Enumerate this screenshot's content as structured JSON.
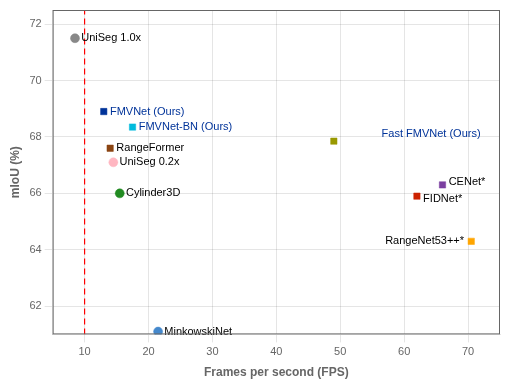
{
  "chart_data": {
    "type": "scatter",
    "xlabel": "Frames per second (FPS)",
    "ylabel": "mIoU (%)",
    "xlim": [
      5,
      75
    ],
    "ylim": [
      61,
      72.5
    ],
    "xticks": [
      10,
      20,
      30,
      40,
      50,
      60,
      70
    ],
    "yticks": [
      62,
      64,
      66,
      68,
      70,
      72
    ],
    "grid": true,
    "series": [
      {
        "color": "#888888",
        "marker": "circle",
        "x": [
          8.5
        ],
        "values": [
          71.5
        ]
      },
      {
        "color": "#003399",
        "marker": "square",
        "x": [
          13.0
        ],
        "values": [
          68.9
        ]
      },
      {
        "color": "#00BBDD",
        "marker": "square",
        "x": [
          17.5
        ],
        "values": [
          68.35
        ]
      },
      {
        "color": "#8B4513",
        "marker": "square",
        "x": [
          14.0
        ],
        "values": [
          67.6
        ]
      },
      {
        "color": "#FFB6C1",
        "marker": "circle",
        "x": [
          14.5
        ],
        "values": [
          67.1
        ]
      },
      {
        "color": "#228B22",
        "marker": "circle",
        "x": [
          15.5
        ],
        "values": [
          66.0
        ]
      },
      {
        "color": "#7B3FA0",
        "marker": "square",
        "x": [
          66.0
        ],
        "values": [
          66.3
        ]
      },
      {
        "color": "#CC2200",
        "marker": "square",
        "x": [
          62.0
        ],
        "values": [
          65.9
        ]
      },
      {
        "color": "#FFA500",
        "marker": "square",
        "x": [
          70.5
        ],
        "values": [
          64.3
        ]
      },
      {
        "color": "#4488CC",
        "marker": "circle",
        "x": [
          21.5
        ],
        "values": [
          61.1
        ]
      },
      {
        "color": "#999900",
        "marker": "square",
        "x": [
          49.0
        ],
        "values": [
          67.85
        ]
      }
    ],
    "annotations": [
      {
        "text": "UniSeg 1.0x",
        "x": 9.0,
        "y": 71.5,
        "color": "black"
      },
      {
        "text": "FMVNet (Ours)",
        "x": 13.5,
        "y": 68.9,
        "color": "#003399"
      },
      {
        "text": "FMVNet-BN (Ours)",
        "x": 18.0,
        "y": 68.35,
        "color": "#003399"
      },
      {
        "text": "RangeFormer",
        "x": 14.5,
        "y": 67.6,
        "color": "black"
      },
      {
        "text": "UniSeg 0.2x",
        "x": 15.0,
        "y": 67.1,
        "color": "black"
      },
      {
        "text": "Cylinder3D",
        "x": 16.0,
        "y": 66.0,
        "color": "black"
      },
      {
        "text": "CENet*",
        "x": 66.5,
        "y": 66.4,
        "color": "black"
      },
      {
        "text": "FIDNet*",
        "x": 62.5,
        "y": 65.8,
        "color": "black"
      },
      {
        "text": "RangeNet53++*",
        "x": 70.0,
        "y": 64.3,
        "color": "black"
      },
      {
        "text": "MinkowskiNet",
        "x": 22.0,
        "y": 61.1,
        "color": "black"
      },
      {
        "text": "Fast FMVNet (Ours)",
        "x": 56.0,
        "y": 68.1,
        "color": "#003399"
      }
    ],
    "reference_lines": [
      {
        "x": 10.0,
        "color": "red",
        "line_style": "dashed"
      }
    ]
  }
}
